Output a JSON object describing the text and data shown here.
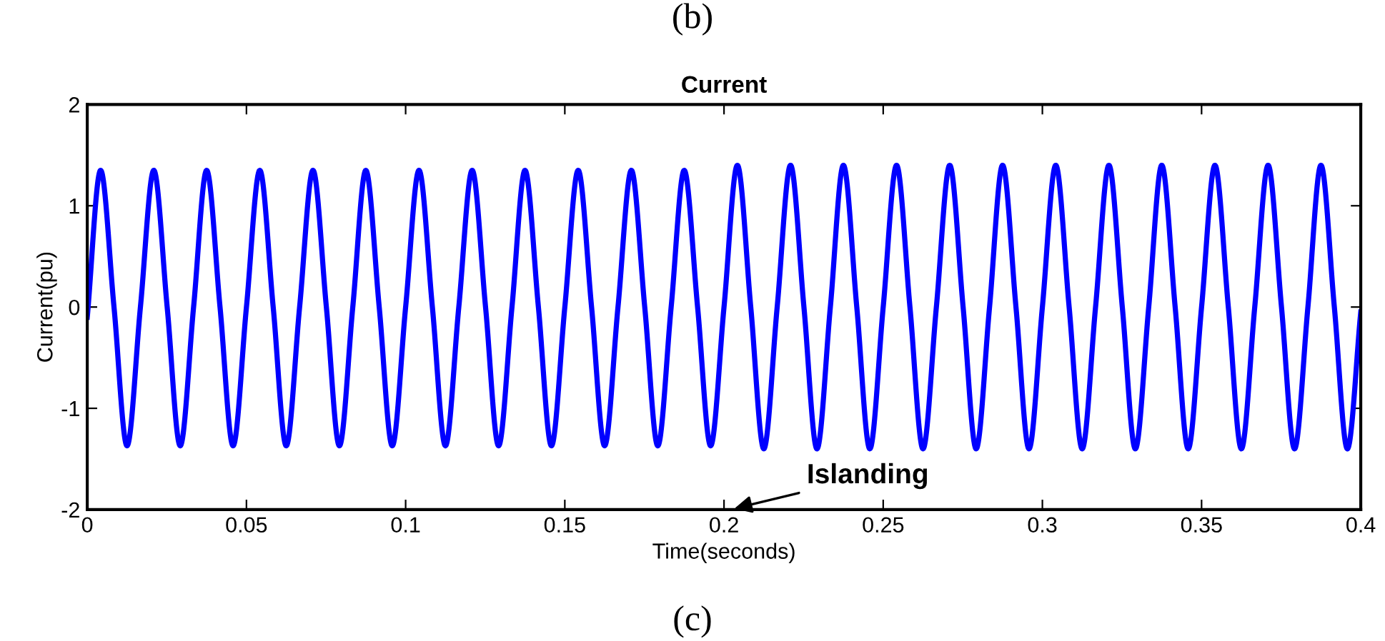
{
  "chart_data": {
    "type": "line",
    "title": "Current",
    "xlabel": "Time(seconds)",
    "ylabel": "Current(pu)",
    "annotations": [
      "(b)",
      "Islanding",
      "(c)"
    ],
    "xlim": [
      0,
      0.4
    ],
    "ylim": [
      -2,
      2
    ],
    "xticks": [
      0,
      0.05,
      0.1,
      0.15,
      0.2,
      0.25,
      0.3,
      0.35,
      0.4
    ],
    "yticks": [
      -2,
      -1,
      0,
      1,
      2
    ],
    "grid": false,
    "legend": false,
    "line_style": "solid",
    "marker": "none",
    "series": [
      {
        "color": "#0000ff",
        "x": [
          0,
          0.0042,
          0.0084,
          0.0125,
          0.0167,
          0.0209,
          0.0251,
          0.0292,
          0.0334,
          0.0375,
          0.0417,
          0.0458,
          0.05,
          0.0542,
          0.0584,
          0.0625,
          0.0667,
          0.0709,
          0.0751,
          0.0792,
          0.0834,
          0.0875,
          0.0917,
          0.0958,
          0.1,
          0.1042,
          0.1084,
          0.1125,
          0.1167,
          0.1209,
          0.1251,
          0.1292,
          0.1334,
          0.1375,
          0.1417,
          0.1458,
          0.15,
          0.1542,
          0.1584,
          0.1625,
          0.1667,
          0.1709,
          0.1751,
          0.1792,
          0.1834,
          0.1875,
          0.1917,
          0.1958,
          0.2,
          0.2042,
          0.2084,
          0.2125,
          0.2167,
          0.2209,
          0.2251,
          0.2292,
          0.2334,
          0.2375,
          0.2417,
          0.2458,
          0.25,
          0.2542,
          0.2584,
          0.2625,
          0.2667,
          0.2709,
          0.2751,
          0.2792,
          0.2834,
          0.2875,
          0.2917,
          0.2958,
          0.3,
          0.3042,
          0.3084,
          0.3125,
          0.3167,
          0.3209,
          0.3251,
          0.3292,
          0.3334,
          0.3375,
          0.3417,
          0.3458,
          0.35,
          0.3542,
          0.3584,
          0.3625,
          0.3667,
          0.3709,
          0.3751,
          0.3792,
          0.3834,
          0.3875,
          0.3917,
          0.3958,
          0.4
        ],
        "values": [
          -0.1,
          1.35,
          0,
          -1.37,
          0,
          1.35,
          0,
          -1.37,
          0,
          1.35,
          0,
          -1.37,
          0,
          1.35,
          0,
          -1.37,
          0,
          1.35,
          0,
          -1.37,
          0,
          1.35,
          0,
          -1.37,
          0,
          1.35,
          0,
          -1.37,
          0,
          1.35,
          0,
          -1.37,
          0,
          1.35,
          0,
          -1.37,
          0,
          1.35,
          0,
          -1.37,
          0,
          1.35,
          0,
          -1.37,
          0,
          1.35,
          0,
          -1.37,
          0,
          1.4,
          0,
          -1.4,
          0,
          1.4,
          0,
          -1.4,
          0,
          1.4,
          0,
          -1.4,
          0,
          1.4,
          0,
          -1.4,
          0,
          1.4,
          0,
          -1.4,
          0,
          1.4,
          0,
          -1.4,
          0,
          1.4,
          0,
          -1.4,
          0,
          1.4,
          0,
          -1.4,
          0,
          1.4,
          0,
          -1.4,
          0,
          1.4,
          0,
          -1.4,
          0,
          1.4,
          0,
          -1.4,
          0,
          1.4,
          0,
          -1.4,
          -0.05
        ]
      }
    ]
  }
}
